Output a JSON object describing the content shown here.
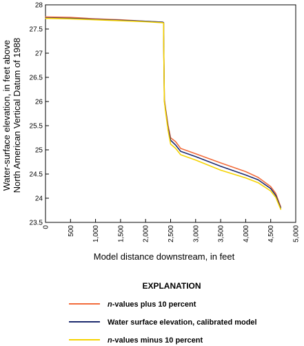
{
  "chart_data": {
    "type": "line",
    "ylabel_lines": [
      "Water-surface elevation, in feet above",
      "North American Vertical Datum of 1988"
    ],
    "xlabel": "Model distance downstream, in feet",
    "xlim": [
      0,
      5000
    ],
    "ylim": [
      23.5,
      28
    ],
    "x_ticks": [
      0,
      500,
      1000,
      1500,
      2000,
      2500,
      3000,
      3500,
      4000,
      4500,
      5000
    ],
    "x_tick_labels": [
      "0",
      "500",
      "1,000",
      "1,500",
      "2,000",
      "2,500",
      "3,000",
      "3,500",
      "4,000",
      "4,500",
      "5,000"
    ],
    "y_ticks": [
      23.5,
      24,
      24.5,
      25,
      25.5,
      26,
      26.5,
      27,
      27.5,
      28
    ],
    "y_tick_labels": [
      "23.5",
      "24",
      "24.5",
      "25",
      "25.5",
      "26",
      "26.5",
      "27",
      "27.5",
      "28"
    ],
    "grid": false,
    "legend_title": "EXPLANATION",
    "legend_position": "bottom",
    "series": [
      {
        "name_italic": "n",
        "name_rest": "-values plus 10 percent",
        "color": "#f26b3a",
        "points": [
          [
            0,
            27.75
          ],
          [
            500,
            27.74
          ],
          [
            1000,
            27.71
          ],
          [
            1500,
            27.69
          ],
          [
            2000,
            27.66
          ],
          [
            2345,
            27.64
          ],
          [
            2360,
            27.63
          ],
          [
            2360,
            27.42
          ],
          [
            2375,
            26.05
          ],
          [
            2400,
            25.85
          ],
          [
            2450,
            25.5
          ],
          [
            2500,
            25.25
          ],
          [
            2600,
            25.17
          ],
          [
            2700,
            25.03
          ],
          [
            3000,
            24.92
          ],
          [
            3500,
            24.73
          ],
          [
            4000,
            24.55
          ],
          [
            4250,
            24.43
          ],
          [
            4500,
            24.24
          ],
          [
            4600,
            24.1
          ],
          [
            4700,
            23.82
          ]
        ]
      },
      {
        "name_italic": "",
        "name_rest": "Water surface elevation, calibrated model",
        "color": "#1c2a6e",
        "points": [
          [
            0,
            27.73
          ],
          [
            500,
            27.72
          ],
          [
            1000,
            27.7
          ],
          [
            1500,
            27.68
          ],
          [
            2000,
            27.66
          ],
          [
            2345,
            27.64
          ],
          [
            2360,
            27.63
          ],
          [
            2360,
            27.4
          ],
          [
            2375,
            26.02
          ],
          [
            2400,
            25.82
          ],
          [
            2450,
            25.45
          ],
          [
            2500,
            25.2
          ],
          [
            2600,
            25.1
          ],
          [
            2700,
            24.97
          ],
          [
            3000,
            24.86
          ],
          [
            3500,
            24.66
          ],
          [
            4000,
            24.48
          ],
          [
            4250,
            24.38
          ],
          [
            4500,
            24.2
          ],
          [
            4600,
            24.06
          ],
          [
            4700,
            23.8
          ]
        ]
      },
      {
        "name_italic": "n",
        "name_rest": "-values minus 10 percent",
        "color": "#f5d300",
        "points": [
          [
            0,
            27.72
          ],
          [
            500,
            27.71
          ],
          [
            1000,
            27.69
          ],
          [
            1500,
            27.67
          ],
          [
            2000,
            27.65
          ],
          [
            2345,
            27.63
          ],
          [
            2360,
            27.62
          ],
          [
            2360,
            27.38
          ],
          [
            2375,
            26.0
          ],
          [
            2400,
            25.78
          ],
          [
            2450,
            25.4
          ],
          [
            2500,
            25.12
          ],
          [
            2600,
            25.03
          ],
          [
            2700,
            24.9
          ],
          [
            3000,
            24.79
          ],
          [
            3500,
            24.58
          ],
          [
            4000,
            24.42
          ],
          [
            4250,
            24.32
          ],
          [
            4500,
            24.15
          ],
          [
            4600,
            24.02
          ],
          [
            4700,
            23.77
          ]
        ]
      }
    ]
  }
}
